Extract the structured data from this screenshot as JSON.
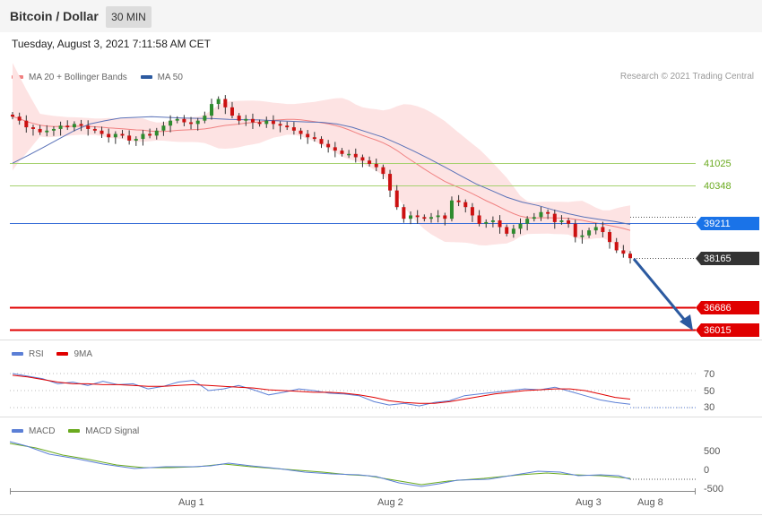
{
  "header": {
    "title": "Bitcoin / Dollar",
    "interval": "30 MIN"
  },
  "timestamp": "Tuesday, August 3, 2021 7:11:58 AM CET",
  "credit": "Research © 2021 Trading Central",
  "legend_main": [
    {
      "label": "MA 20 + Bollinger Bands",
      "color": "#f08080"
    },
    {
      "label": "MA 50",
      "color": "#2c5aa0"
    }
  ],
  "legend_rsi": [
    {
      "label": "RSI",
      "color": "#5b7fd6"
    },
    {
      "label": "9MA",
      "color": "#e00000"
    }
  ],
  "legend_macd": [
    {
      "label": "MACD",
      "color": "#5b7fd6"
    },
    {
      "label": "MACD Signal",
      "color": "#6aaa1f"
    }
  ],
  "levels": {
    "r2": "41025",
    "r1": "40348",
    "pivot": "39211",
    "last": "38165",
    "s1": "36686",
    "s2": "36015"
  },
  "rsi_ticks": [
    "70",
    "50",
    "30"
  ],
  "macd_ticks": [
    "500",
    "0",
    "-500"
  ],
  "x_labels": [
    "Aug 1",
    "Aug 2",
    "Aug 3",
    "Aug 8"
  ],
  "chart_data": {
    "type": "candlestick",
    "title": "Bitcoin / Dollar",
    "interval": "30 MIN",
    "x_axis_labels": [
      "Aug 1",
      "Aug 2",
      "Aug 3",
      "Aug 8"
    ],
    "price_levels": [
      41025,
      40348,
      39211,
      38165,
      36686,
      36015
    ],
    "last_price": 38165,
    "close": [
      42420,
      42300,
      42100,
      42050,
      41950,
      42000,
      42050,
      42150,
      42100,
      42200,
      42150,
      42050,
      42000,
      41900,
      41800,
      41900,
      41850,
      41700,
      41750,
      41900,
      41850,
      42000,
      42150,
      42300,
      42350,
      42250,
      42200,
      42300,
      42450,
      42800,
      42950,
      42700,
      42450,
      42300,
      42350,
      42250,
      42200,
      42300,
      42200,
      42150,
      42100,
      42000,
      41900,
      41800,
      41750,
      41600,
      41500,
      41400,
      41300,
      41300,
      41200,
      41100,
      41000,
      40900,
      40700,
      40200,
      39700,
      39350,
      39450,
      39400,
      39350,
      39400,
      39450,
      39350,
      39900,
      39850,
      39700,
      39450,
      39200,
      39250,
      39300,
      39100,
      38900,
      39050,
      39200,
      39350,
      39400,
      39550,
      39500,
      39250,
      39300,
      39200,
      38800,
      38850,
      39000,
      39100,
      38950,
      38650,
      38400,
      38300,
      38165
    ],
    "ma50": [
      41020,
      41250,
      41500,
      41750,
      42000,
      42200,
      42300,
      42380,
      42400,
      42420,
      42400,
      42380,
      42370,
      42360,
      42340,
      42330,
      42320,
      42300,
      42280,
      42260,
      42250,
      42200,
      42100,
      41950,
      41800,
      41600,
      41380,
      41150,
      40900,
      40650,
      40400,
      40200,
      40000,
      39850,
      39750,
      39620,
      39500,
      39400,
      39330,
      39270,
      39180
    ],
    "rsi": [
      70,
      67,
      64,
      58,
      60,
      56,
      61,
      57,
      58,
      52,
      55,
      60,
      62,
      50,
      52,
      56,
      51,
      45,
      48,
      52,
      50,
      47,
      46,
      44,
      37,
      33,
      35,
      32,
      36,
      38,
      44,
      46,
      48,
      50,
      52,
      51,
      54,
      49,
      44,
      39,
      36,
      34
    ],
    "rsi_9ma": [
      68,
      66,
      63,
      60,
      58,
      58,
      57,
      57,
      56,
      55,
      55,
      56,
      57,
      56,
      55,
      54,
      53,
      51,
      50,
      49,
      48,
      48,
      47,
      45,
      42,
      38,
      36,
      35,
      35,
      37,
      40,
      43,
      46,
      48,
      50,
      51,
      52,
      52,
      50,
      46,
      42,
      40
    ],
    "rsi_range": [
      30,
      70
    ],
    "macd_range": [
      -500,
      500
    ]
  }
}
